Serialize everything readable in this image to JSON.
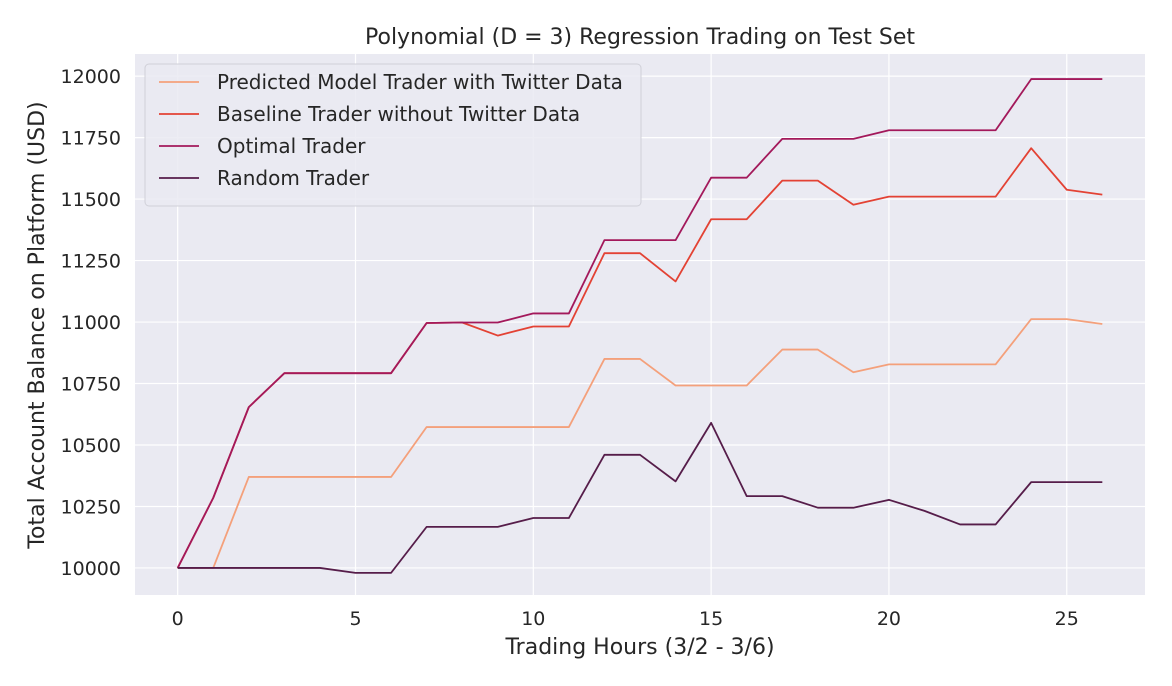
{
  "chart_data": {
    "type": "line",
    "title": "Polynomial (D = 3) Regression Trading on Test Set",
    "xlabel": "Trading Hours (3/2 - 3/6)",
    "ylabel": "Total Account Balance on Platform (USD)",
    "xlim": [
      -1.2,
      27.2
    ],
    "ylim": [
      9890,
      12090
    ],
    "xticks": [
      0,
      5,
      10,
      15,
      20,
      25
    ],
    "yticks": [
      10000,
      10250,
      10500,
      10750,
      11000,
      11250,
      11500,
      11750,
      12000
    ],
    "grid": true,
    "legend_position": "upper-left",
    "background": "#eaeaf2",
    "x": [
      0,
      1,
      2,
      3,
      4,
      5,
      6,
      7,
      8,
      9,
      10,
      11,
      12,
      13,
      14,
      15,
      16,
      17,
      18,
      19,
      20,
      21,
      22,
      23,
      24,
      25,
      26
    ],
    "series": [
      {
        "name": "Predicted Model Trader with Twitter Data",
        "color": "#f4a07b",
        "values": [
          10000,
          10000,
          10370,
          10370,
          10370,
          10370,
          10370,
          10573,
          10573,
          10573,
          10573,
          10573,
          10850,
          10850,
          10742,
          10742,
          10742,
          10888,
          10888,
          10796,
          10828,
          10828,
          10828,
          10828,
          11012,
          11012,
          10992
        ]
      },
      {
        "name": "Baseline Trader without Twitter Data",
        "color": "#e34234",
        "values": [
          10000,
          10285,
          10654,
          10792,
          10792,
          10792,
          10792,
          10996,
          10998,
          10945,
          10982,
          10982,
          11280,
          11280,
          11165,
          11418,
          11418,
          11575,
          11575,
          11477,
          11510,
          11510,
          11510,
          11510,
          11707,
          11538,
          11518
        ]
      },
      {
        "name": "Optimal Trader",
        "color": "#a3195b",
        "values": [
          10000,
          10285,
          10654,
          10792,
          10792,
          10792,
          10792,
          10996,
          10998,
          10998,
          11035,
          11035,
          11333,
          11333,
          11333,
          11587,
          11587,
          11745,
          11745,
          11745,
          11780,
          11780,
          11780,
          11780,
          11988,
          11988,
          11988
        ]
      },
      {
        "name": "Random Trader",
        "color": "#561d4a",
        "values": [
          10000,
          10000,
          10000,
          10000,
          10000,
          9980,
          9980,
          10167,
          10167,
          10167,
          10203,
          10203,
          10460,
          10460,
          10352,
          10590,
          10292,
          10292,
          10245,
          10245,
          10277,
          10232,
          10177,
          10177,
          10349,
          10349,
          10349
        ]
      }
    ]
  }
}
